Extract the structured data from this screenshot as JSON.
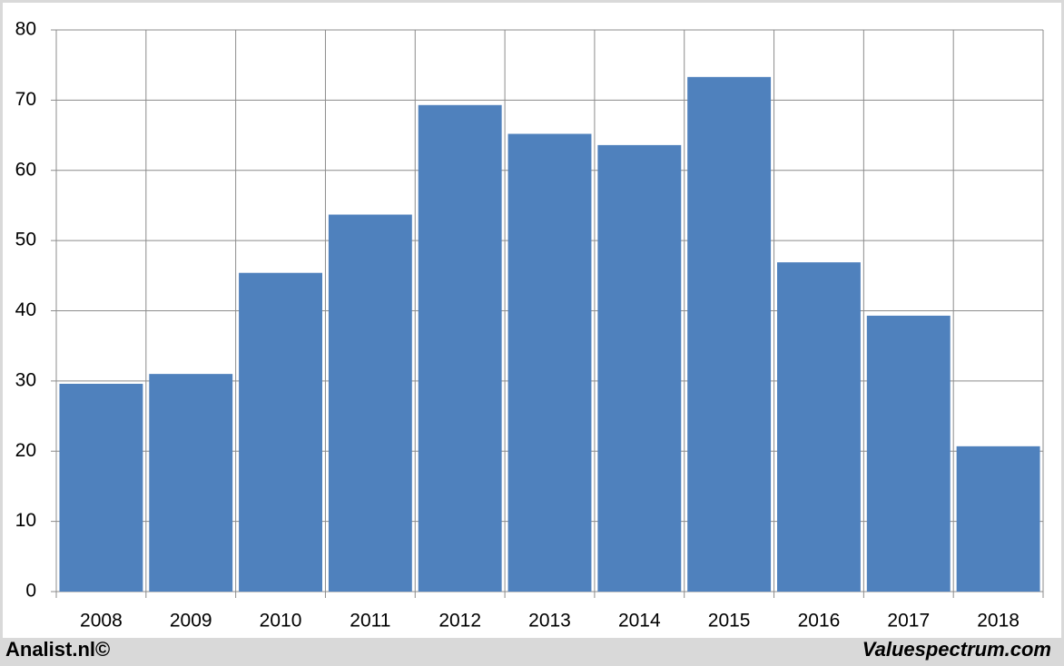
{
  "chart_data": {
    "type": "bar",
    "categories": [
      "2008",
      "2009",
      "2010",
      "2011",
      "2012",
      "2013",
      "2014",
      "2015",
      "2016",
      "2017",
      "2018"
    ],
    "values": [
      29.6,
      31.0,
      45.4,
      53.7,
      69.3,
      65.2,
      63.6,
      73.3,
      46.9,
      39.3,
      20.7
    ],
    "color": "#4f81bd",
    "ylim": [
      0,
      80
    ],
    "yticks": [
      0,
      10,
      20,
      30,
      40,
      50,
      60,
      70,
      80
    ],
    "grid": true,
    "footer_left": "Analist.nl©",
    "footer_right": "Valuespectrum.com"
  }
}
